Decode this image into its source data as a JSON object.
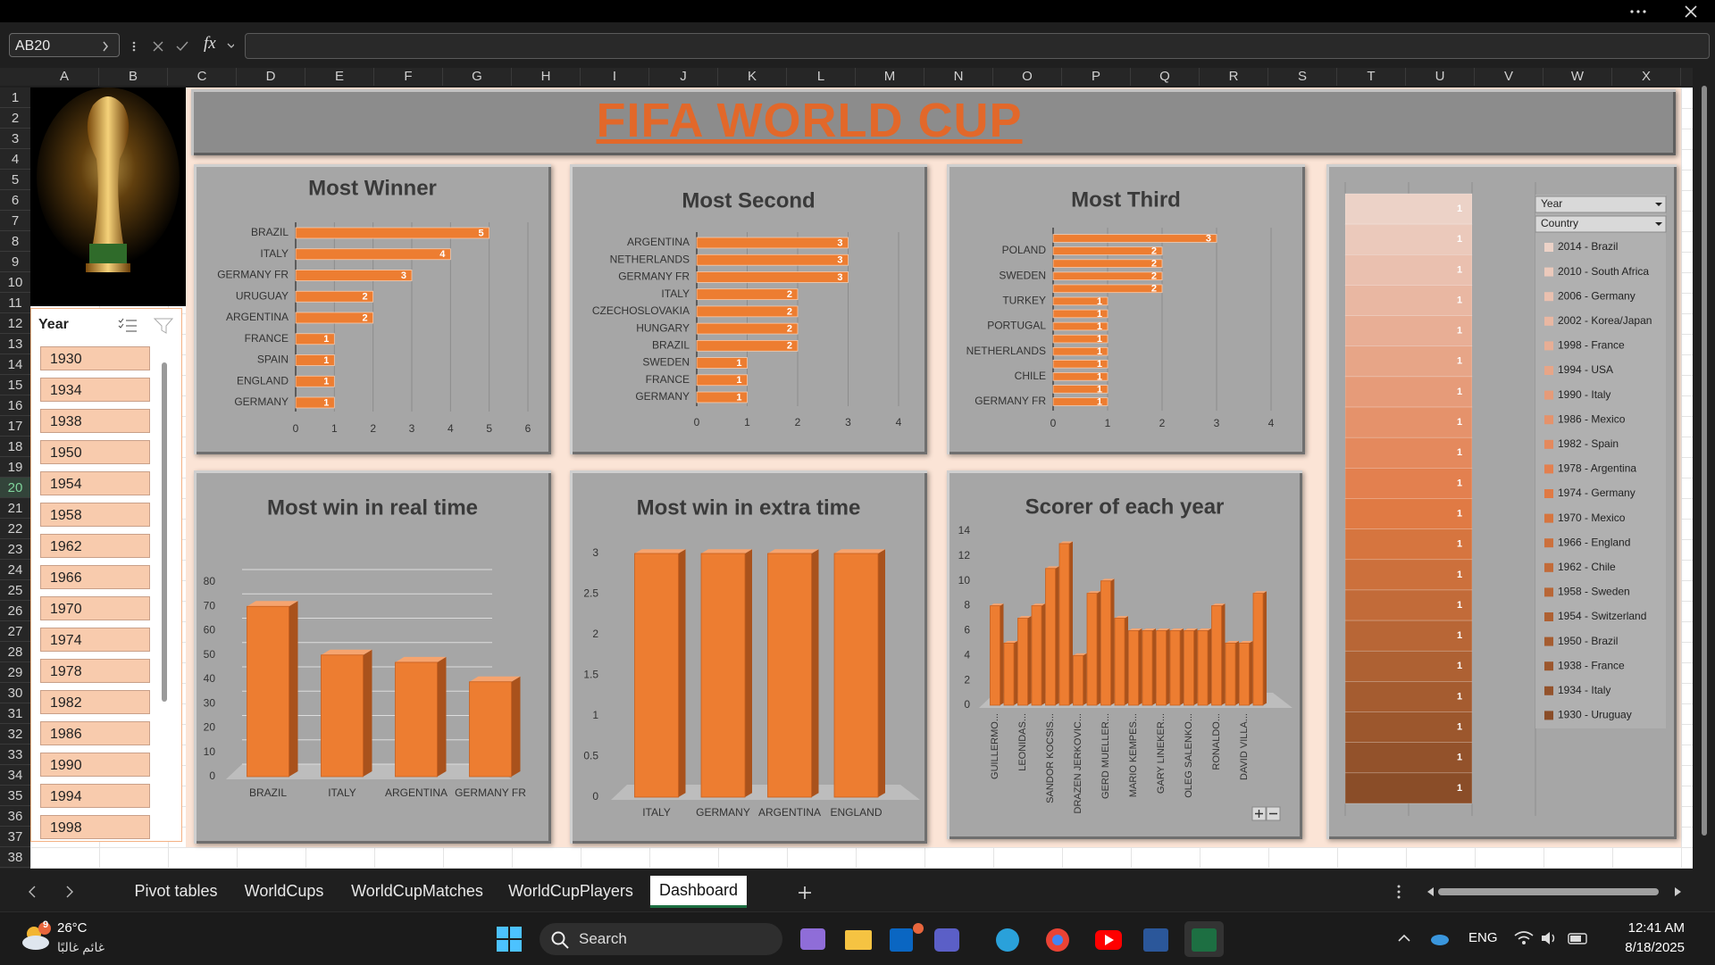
{
  "excel": {
    "name_box": "AB20",
    "fx_label": "fx",
    "columns": [
      "A",
      "B",
      "C",
      "D",
      "E",
      "F",
      "G",
      "H",
      "I",
      "J",
      "K",
      "L",
      "M",
      "N",
      "O",
      "P",
      "Q",
      "R",
      "S",
      "T",
      "U",
      "V",
      "W",
      "X"
    ],
    "rows": [
      1,
      2,
      3,
      4,
      5,
      6,
      7,
      8,
      9,
      10,
      11,
      12,
      13,
      14,
      15,
      16,
      17,
      18,
      19,
      20,
      21,
      22,
      23,
      24,
      25,
      26,
      27,
      28,
      29,
      30,
      31,
      32,
      33,
      34,
      35,
      36,
      37,
      38
    ],
    "sheet_tabs": [
      "Pivot tables",
      "WorldCups",
      "WorldCupMatches",
      "WorldCupPlayers",
      "Dashboard"
    ]
  },
  "dashboard_title": "FIFA WORLD CUP",
  "slicer": {
    "title": "Year",
    "items": [
      1930,
      1934,
      1938,
      1950,
      1954,
      1958,
      1962,
      1966,
      1970,
      1974,
      1978,
      1982,
      1986,
      1990,
      1994,
      1998
    ]
  },
  "chart_data": [
    {
      "type": "hbar",
      "title": "Most Winner",
      "color": "#ed7d31",
      "data_labels": true,
      "categories": [
        "BRAZIL",
        "ITALY",
        "GERMANY FR",
        "URUGUAY",
        "ARGENTINA",
        "FRANCE",
        "SPAIN",
        "ENGLAND",
        "GERMANY"
      ],
      "values": [
        5,
        4,
        3,
        2,
        2,
        1,
        1,
        1,
        1
      ],
      "xlim": [
        0,
        6
      ],
      "xticks": [
        0,
        1,
        2,
        3,
        4,
        5,
        6
      ],
      "grid": true
    },
    {
      "type": "hbar",
      "title": "Most Second",
      "color": "#ed7d31",
      "data_labels": true,
      "categories": [
        "ARGENTINA",
        "NETHERLANDS",
        "GERMANY FR",
        "ITALY",
        "CZECHOSLOVAKIA",
        "HUNGARY",
        "BRAZIL",
        "SWEDEN",
        "FRANCE",
        "GERMANY"
      ],
      "values": [
        3,
        3,
        3,
        2,
        2,
        2,
        2,
        1,
        1,
        1
      ],
      "xlim": [
        0,
        4
      ],
      "xticks": [
        0,
        1,
        2,
        3,
        4
      ],
      "grid": true
    },
    {
      "type": "hbar",
      "title": "Most Third",
      "color": "#ed7d31",
      "data_labels": true,
      "categories": [
        null,
        "POLAND",
        null,
        "SWEDEN",
        null,
        "TURKEY",
        null,
        "PORTUGAL",
        null,
        "NETHERLANDS",
        null,
        "CHILE",
        null,
        "GERMANY FR"
      ],
      "values": [
        3,
        2,
        2,
        2,
        2,
        1,
        1,
        1,
        1,
        1,
        1,
        1,
        1,
        1
      ],
      "xlim": [
        0,
        4
      ],
      "xticks": [
        0,
        1,
        2,
        3,
        4
      ],
      "grid": true
    },
    {
      "type": "column3d",
      "title": "Most win in real time",
      "color": "#ed7d31",
      "categories": [
        "BRAZIL",
        "ITALY",
        "ARGENTINA",
        "GERMANY FR"
      ],
      "values": [
        70,
        50,
        47,
        39
      ],
      "ylim": [
        0,
        80
      ],
      "yticks": [
        0,
        10,
        20,
        30,
        40,
        50,
        60,
        70,
        80
      ],
      "grid": true
    },
    {
      "type": "column3d",
      "title": "Most win in extra time",
      "color": "#ed7d31",
      "categories": [
        "ITALY",
        "GERMANY",
        "ARGENTINA",
        "ENGLAND"
      ],
      "values": [
        3,
        3,
        3,
        3
      ],
      "ylim": [
        0,
        3
      ],
      "yticks": [
        0,
        0.5,
        1,
        1.5,
        2,
        2.5,
        3
      ],
      "grid": false
    },
    {
      "type": "column3d",
      "title": "Scorer of each year",
      "color": "#ed7d31",
      "categories": [
        "GUILLERMO...",
        null,
        "LEONIDAS...",
        null,
        "SANDOR KOCSIS...",
        null,
        "DRAZEN JERKOVIC...",
        null,
        "GERD MUELLER...",
        null,
        "MARIO KEMPES...",
        null,
        "GARY LINEKER...",
        null,
        "OLEG SALENKO...",
        null,
        "RONALDO...",
        null,
        "DAVID VILLA...",
        null
      ],
      "values": [
        8,
        5,
        7,
        8,
        11,
        13,
        4,
        9,
        10,
        7,
        6,
        6,
        6,
        6,
        6,
        6,
        8,
        5,
        5,
        9
      ],
      "ylim": [
        0,
        14
      ],
      "yticks": [
        0,
        2,
        4,
        6,
        8,
        10,
        12,
        14
      ],
      "grid": false
    },
    {
      "type": "stacked_column",
      "filters": [
        "Year",
        "Country"
      ],
      "data_labels": true,
      "series": [
        {
          "name": "2014 - Brazil",
          "color": "#ecd2c7",
          "values": [
            1
          ]
        },
        {
          "name": "2010 - South Africa",
          "color": "#ebc9bb",
          "values": [
            1
          ]
        },
        {
          "name": "2006 - Germany",
          "color": "#eac0af",
          "values": [
            1
          ]
        },
        {
          "name": "2002 - Korea/Japan",
          "color": "#e9b7a2",
          "values": [
            1
          ]
        },
        {
          "name": "1998 - France",
          "color": "#e8ae95",
          "values": [
            1
          ]
        },
        {
          "name": "1994 - USA",
          "color": "#e7a587",
          "values": [
            1
          ]
        },
        {
          "name": "1990 - Italy",
          "color": "#e69b79",
          "values": [
            1
          ]
        },
        {
          "name": "1986 - Mexico",
          "color": "#e5926b",
          "values": [
            1
          ]
        },
        {
          "name": "1982 - Spain",
          "color": "#e4895d",
          "values": [
            1
          ]
        },
        {
          "name": "1978 - Argentina",
          "color": "#e3804f",
          "values": [
            1
          ]
        },
        {
          "name": "1974 - Germany",
          "color": "#e07a44",
          "values": [
            1
          ]
        },
        {
          "name": "1970 - Mexico",
          "color": "#d6753f",
          "values": [
            1
          ]
        },
        {
          "name": "1966 - England",
          "color": "#cc703c",
          "values": [
            1
          ]
        },
        {
          "name": "1962 - Chile",
          "color": "#c26b39",
          "values": [
            1
          ]
        },
        {
          "name": "1958 - Sweden",
          "color": "#b86636",
          "values": [
            1
          ]
        },
        {
          "name": "1954 - Switzerland",
          "color": "#ae6133",
          "values": [
            1
          ]
        },
        {
          "name": "1950 - Brazil",
          "color": "#a55c30",
          "values": [
            1
          ]
        },
        {
          "name": "1938 - France",
          "color": "#9c572d",
          "values": [
            1
          ]
        },
        {
          "name": "1934 - Italy",
          "color": "#93522b",
          "values": [
            1
          ]
        },
        {
          "name": "1930 - Uruguay",
          "color": "#8a4d28",
          "values": [
            1
          ]
        }
      ]
    }
  ],
  "taskbar": {
    "weather_badge": 9,
    "temperature": "26°C",
    "condition": "غائم غالبًا",
    "search": "Search",
    "language": "ENG",
    "time": "12:41 AM",
    "date": "8/18/2025"
  }
}
